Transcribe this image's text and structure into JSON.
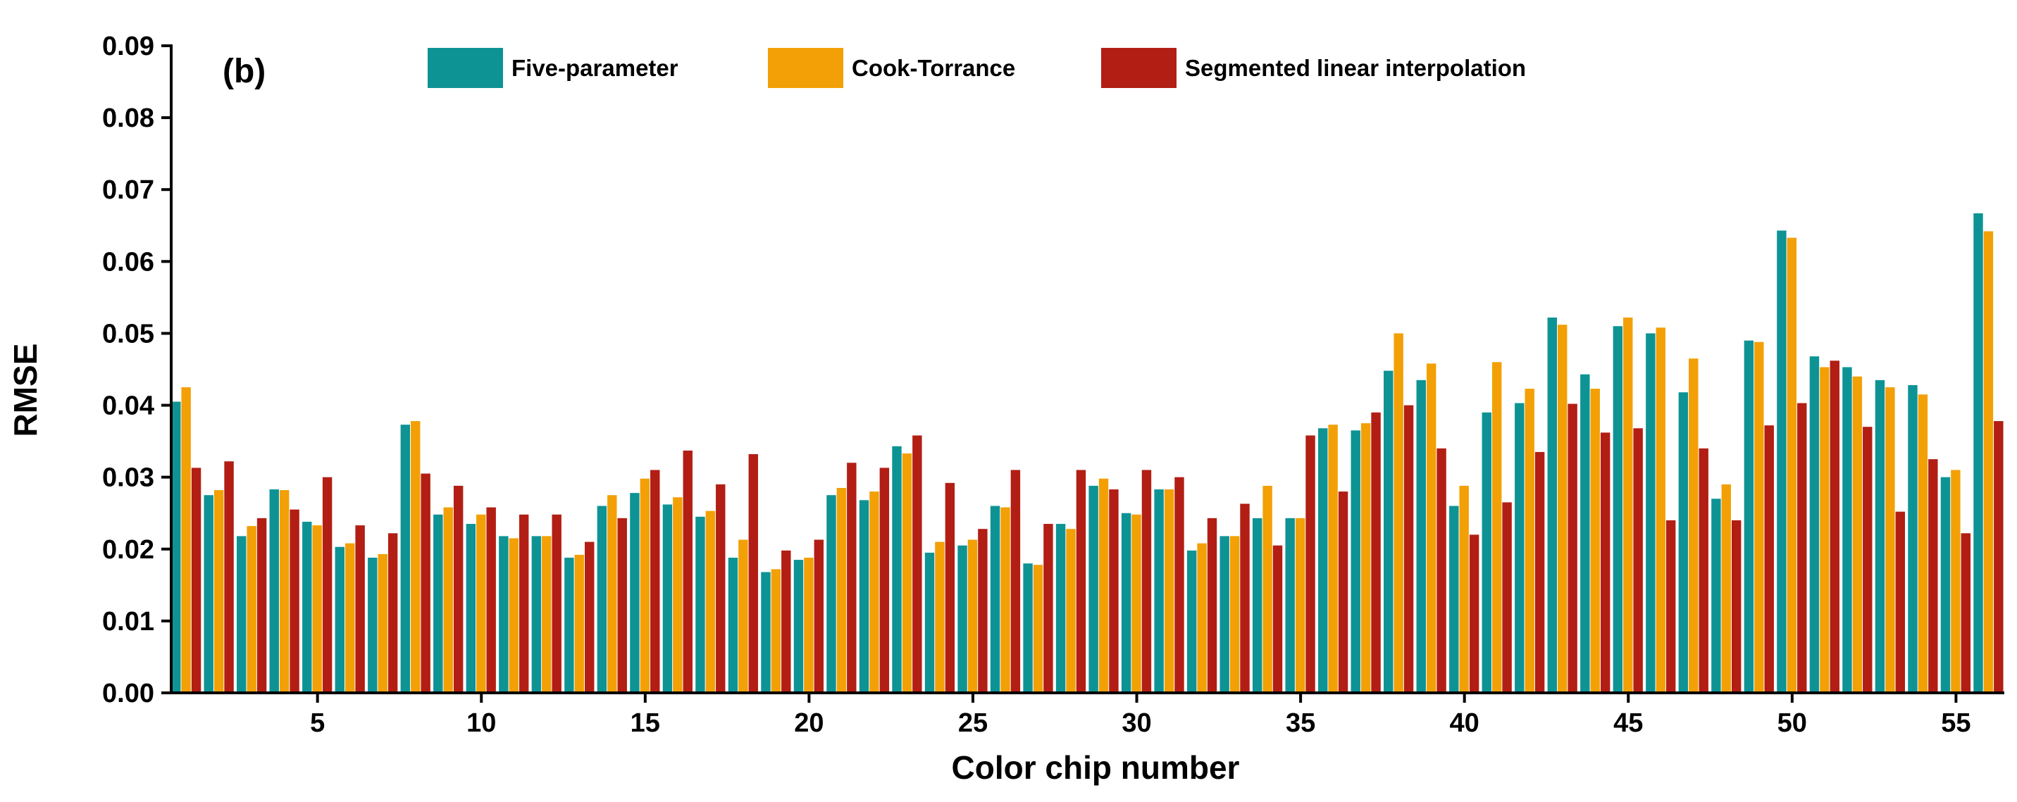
{
  "chart_data": {
    "type": "bar",
    "panel_label": "(b)",
    "xlabel": "Color chip number",
    "ylabel": "RMSE",
    "ylim": [
      0,
      0.09
    ],
    "yticks": [
      "0.00",
      "0.01",
      "0.02",
      "0.03",
      "0.04",
      "0.05",
      "0.06",
      "0.07",
      "0.08",
      "0.09"
    ],
    "xtick_values": [
      5,
      10,
      15,
      20,
      25,
      30,
      35,
      40,
      45,
      50,
      55
    ],
    "xtick_labels": [
      "5",
      "10",
      "15",
      "20",
      "25",
      "30",
      "35",
      "40",
      "45",
      "50",
      "55"
    ],
    "grid": false,
    "legend_position": "top",
    "categories": [
      1,
      2,
      3,
      4,
      5,
      6,
      7,
      8,
      9,
      10,
      11,
      12,
      13,
      14,
      15,
      16,
      17,
      18,
      19,
      20,
      21,
      22,
      23,
      24,
      25,
      26,
      27,
      28,
      29,
      30,
      31,
      32,
      33,
      34,
      35,
      36,
      37,
      38,
      39,
      40,
      41,
      42,
      43,
      44,
      45,
      46,
      47,
      48,
      49,
      50,
      51,
      52,
      53,
      54,
      55,
      56
    ],
    "series": [
      {
        "name": "Five-parameter",
        "color": "#0E9395",
        "values": [
          0.0405,
          0.0275,
          0.0218,
          0.0283,
          0.0238,
          0.0203,
          0.0188,
          0.0373,
          0.0248,
          0.0235,
          0.0218,
          0.0218,
          0.0188,
          0.026,
          0.0278,
          0.0262,
          0.0245,
          0.0188,
          0.0168,
          0.0185,
          0.0275,
          0.0268,
          0.0343,
          0.0195,
          0.0205,
          0.026,
          0.018,
          0.0235,
          0.0288,
          0.025,
          0.0283,
          0.0198,
          0.0218,
          0.0243,
          0.0243,
          0.0368,
          0.0365,
          0.0448,
          0.0435,
          0.026,
          0.039,
          0.0403,
          0.0522,
          0.0443,
          0.051,
          0.05,
          0.0418,
          0.027,
          0.049,
          0.0643,
          0.0468,
          0.0453,
          0.0435,
          0.0428,
          0.03,
          0.0667
        ]
      },
      {
        "name": "Cook-Torrance",
        "color": "#F2A005",
        "values": [
          0.0425,
          0.0282,
          0.0232,
          0.0282,
          0.0233,
          0.0208,
          0.0193,
          0.0378,
          0.0258,
          0.0248,
          0.0215,
          0.0218,
          0.0192,
          0.0275,
          0.0298,
          0.0272,
          0.0253,
          0.0213,
          0.0172,
          0.0188,
          0.0285,
          0.028,
          0.0333,
          0.021,
          0.0213,
          0.0258,
          0.0178,
          0.0228,
          0.0298,
          0.0248,
          0.0283,
          0.0208,
          0.0218,
          0.0288,
          0.0243,
          0.0373,
          0.0375,
          0.05,
          0.0458,
          0.0288,
          0.046,
          0.0423,
          0.0512,
          0.0423,
          0.0522,
          0.0508,
          0.0465,
          0.029,
          0.0488,
          0.0633,
          0.0453,
          0.044,
          0.0425,
          0.0415,
          0.031,
          0.0642
        ]
      },
      {
        "name": "Segmented linear interpolation",
        "color": "#B21E14",
        "values": [
          0.0313,
          0.0322,
          0.0243,
          0.0255,
          0.03,
          0.0233,
          0.0222,
          0.0305,
          0.0288,
          0.0258,
          0.0248,
          0.0248,
          0.021,
          0.0243,
          0.031,
          0.0337,
          0.029,
          0.0332,
          0.0198,
          0.0213,
          0.032,
          0.0313,
          0.0358,
          0.0292,
          0.0228,
          0.031,
          0.0235,
          0.031,
          0.0283,
          0.031,
          0.03,
          0.0243,
          0.0263,
          0.0205,
          0.0358,
          0.028,
          0.039,
          0.04,
          0.034,
          0.022,
          0.0265,
          0.0335,
          0.0402,
          0.0362,
          0.0368,
          0.024,
          0.034,
          0.024,
          0.0372,
          0.0403,
          0.0462,
          0.037,
          0.0252,
          0.0325,
          0.0222,
          0.0378
        ]
      }
    ]
  }
}
